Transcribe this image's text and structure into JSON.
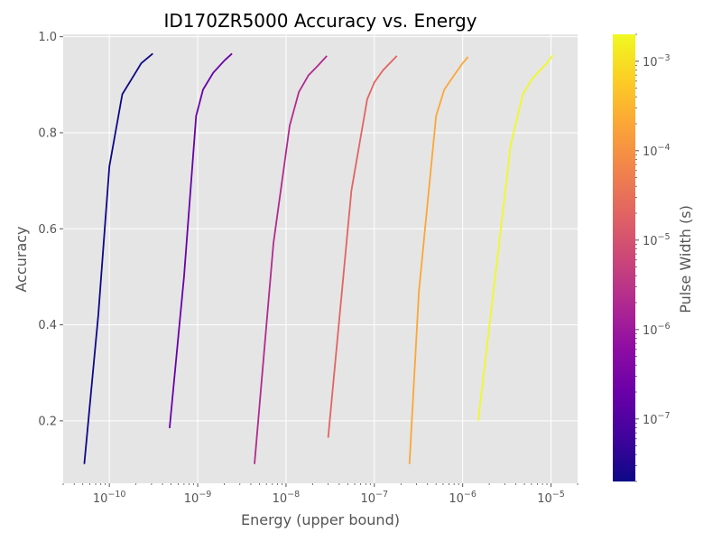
{
  "chart_data": {
    "type": "line",
    "title": "ID170ZR5000 Accuracy vs. Energy",
    "xlabel": "Energy (upper bound)",
    "ylabel": "Accuracy",
    "xscale": "log",
    "xlim": [
      3e-11,
      2e-05
    ],
    "ylim": [
      0.07,
      1.005
    ],
    "grid": true,
    "x_ticks": [
      {
        "value": 1e-10,
        "base": "10",
        "exp": "−10"
      },
      {
        "value": 1e-09,
        "base": "10",
        "exp": "−9"
      },
      {
        "value": 1e-08,
        "base": "10",
        "exp": "−8"
      },
      {
        "value": 1e-07,
        "base": "10",
        "exp": "−7"
      },
      {
        "value": 1e-06,
        "base": "10",
        "exp": "−6"
      },
      {
        "value": 1e-05,
        "base": "10",
        "exp": "−5"
      }
    ],
    "y_ticks": [
      {
        "value": 0.2,
        "label": "0.2"
      },
      {
        "value": 0.4,
        "label": "0.4"
      },
      {
        "value": 0.6,
        "label": "0.6"
      },
      {
        "value": 0.8,
        "label": "0.8"
      },
      {
        "value": 1.0,
        "label": "1.0"
      }
    ],
    "colorbar": {
      "label": "Pulse Width (s)",
      "scale": "log",
      "colormap": "plasma",
      "range": [
        2e-08,
        0.002
      ],
      "ticks": [
        {
          "value": 1e-07,
          "base": "10",
          "exp": "−7"
        },
        {
          "value": 1e-06,
          "base": "10",
          "exp": "−6"
        },
        {
          "value": 1e-05,
          "base": "10",
          "exp": "−5"
        },
        {
          "value": 0.0001,
          "base": "10",
          "exp": "−4"
        },
        {
          "value": 0.001,
          "base": "10",
          "exp": "−3"
        }
      ]
    },
    "series": [
      {
        "color": "#0d0887",
        "x": [
          5.2e-11,
          7.5e-11,
          1e-10,
          1.4e-10,
          1.9e-10,
          2.3e-10,
          3.1e-10
        ],
        "y": [
          0.11,
          0.42,
          0.73,
          0.88,
          0.92,
          0.945,
          0.965
        ]
      },
      {
        "color": "#6a00a8",
        "x": [
          4.8e-10,
          7e-10,
          9.6e-10,
          1.15e-09,
          1.5e-09,
          2e-09,
          2.45e-09
        ],
        "y": [
          0.185,
          0.5,
          0.835,
          0.89,
          0.925,
          0.95,
          0.965
        ]
      },
      {
        "color": "#b12a90",
        "x": [
          4.4e-09,
          7.2e-09,
          1.1e-08,
          1.4e-08,
          1.8e-08,
          2.3e-08,
          2.9e-08
        ],
        "y": [
          0.11,
          0.57,
          0.815,
          0.885,
          0.92,
          0.94,
          0.96
        ]
      },
      {
        "color": "#e16462",
        "x": [
          3e-08,
          5.5e-08,
          8.3e-08,
          1e-07,
          1.25e-07,
          1.5e-07,
          1.8e-07
        ],
        "y": [
          0.165,
          0.68,
          0.87,
          0.905,
          0.93,
          0.945,
          0.96
        ]
      },
      {
        "color": "#fca636",
        "x": [
          2.5e-07,
          3.2e-07,
          5e-07,
          6.2e-07,
          8e-07,
          1e-06,
          1.15e-06
        ],
        "y": [
          0.11,
          0.47,
          0.835,
          0.89,
          0.92,
          0.945,
          0.958
        ]
      },
      {
        "color": "#f0f921",
        "x": [
          1.5e-06,
          3.5e-06,
          4.8e-06,
          6e-06,
          7.5e-06,
          9e-06,
          1.05e-05
        ],
        "y": [
          0.2,
          0.775,
          0.88,
          0.91,
          0.93,
          0.945,
          0.962
        ]
      }
    ]
  }
}
